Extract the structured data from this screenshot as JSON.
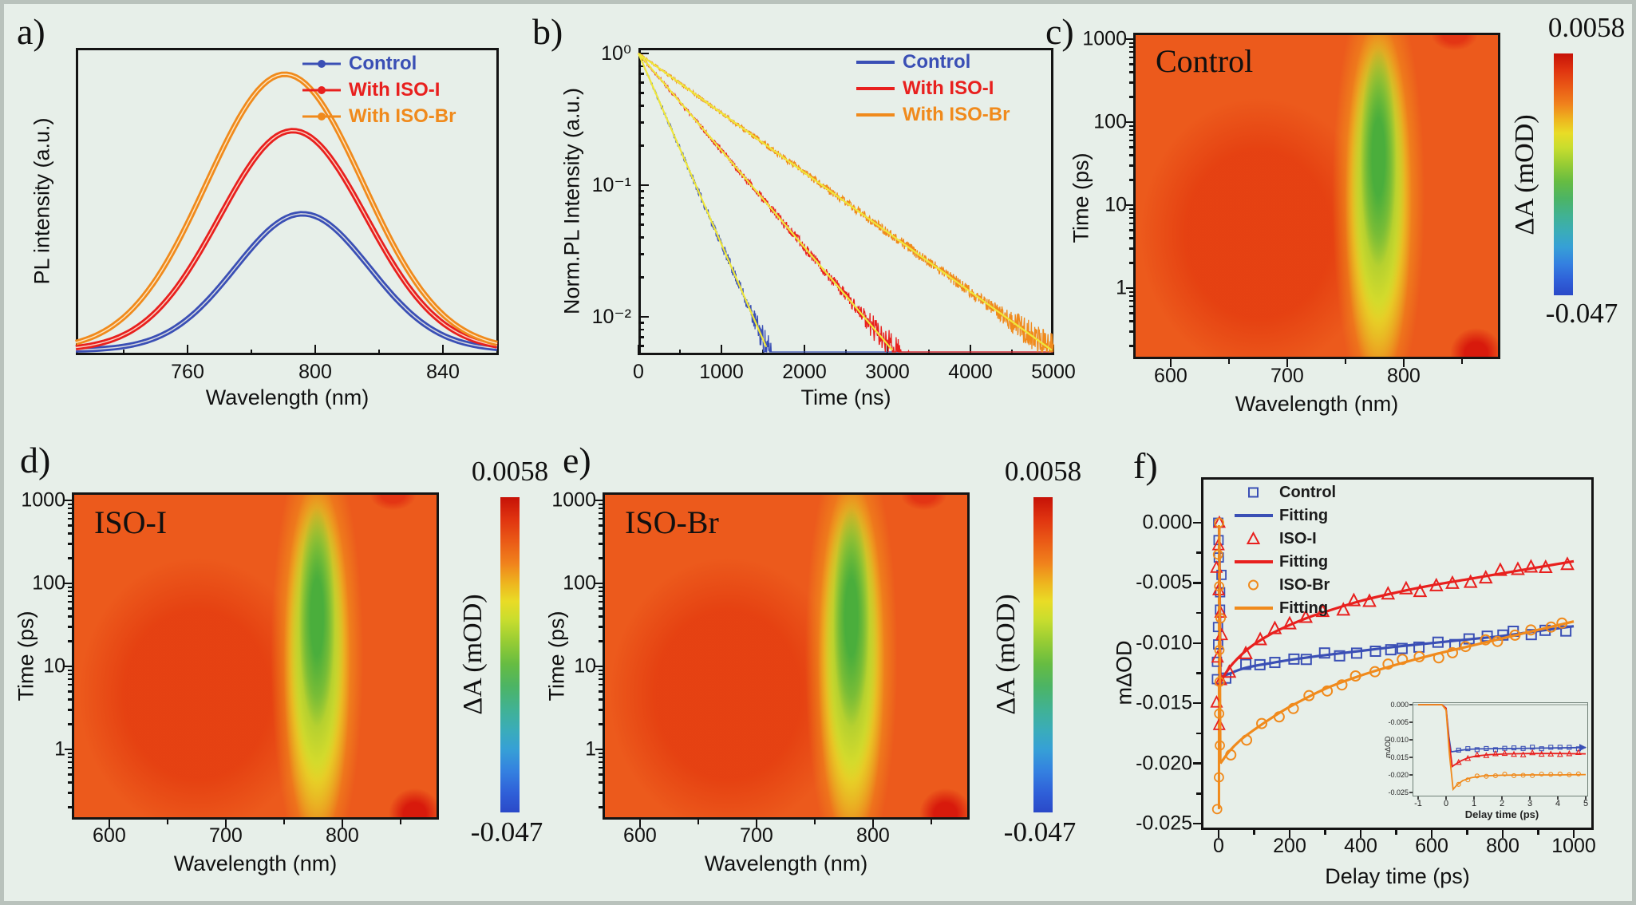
{
  "figure": {
    "background_color": "#e7efe9",
    "frame_color": "#b9c2bc",
    "accent_blue": "#3a4fb5",
    "accent_red": "#e8201e",
    "accent_orange": "#f08a1c",
    "fit_yellow": "#efe73a"
  },
  "chart_data": [
    {
      "panel_label": "a)",
      "type": "line",
      "xlabel": "Wavelength (nm)",
      "ylabel": "PL intensity (a.u.)",
      "xticks": [
        760,
        800,
        840
      ],
      "x_range_nm": [
        725,
        857
      ],
      "series": [
        {
          "name": "Control",
          "color": "#3a4fb5",
          "peak_nm": 796,
          "sigma_nm": 21,
          "peak_height_frac": 0.46
        },
        {
          "name": "With ISO-I",
          "color": "#e8201e",
          "peak_nm": 793,
          "sigma_nm": 23,
          "peak_height_frac": 0.74
        },
        {
          "name": "With ISO-Br",
          "color": "#f08a1c",
          "peak_nm": 790.5,
          "sigma_nm": 24.5,
          "peak_height_frac": 0.93
        }
      ]
    },
    {
      "panel_label": "b)",
      "type": "line-log",
      "xlabel": "Time (ns)",
      "ylabel": "Norm.PL Intensity (a.u.)",
      "xticks": [
        0,
        1000,
        2000,
        3000,
        4000,
        5000
      ],
      "ytick_labels": [
        "10⁰",
        "10⁻¹",
        "10⁻²"
      ],
      "y_range_decades": [
        0,
        -2.3
      ],
      "fit_color": "#efe73a",
      "series": [
        {
          "name": "Control",
          "color": "#3a4fb5",
          "lifetime_ns": 300
        },
        {
          "name": "With ISO-I",
          "color": "#e8201e",
          "lifetime_ns": 590
        },
        {
          "name": "With ISO-Br",
          "color": "#f08a1c",
          "lifetime_ns": 960
        }
      ]
    },
    {
      "panel_label": "c)",
      "type": "heatmap",
      "title": "Control",
      "xlabel": "Wavelength (nm)",
      "ylabel": "Time (ps)",
      "xticks": [
        600,
        700,
        800
      ],
      "yticks": [
        1,
        10,
        100,
        1000
      ],
      "colorbar": {
        "max_label": "0.0058",
        "min_label": "-0.047",
        "label": "ΔA (mOD)"
      },
      "features": {
        "base_color": "#ec5a1c",
        "band_x_pct": 67,
        "band_core_color": "#4aae3c",
        "band_halo_color": "#e4e02a",
        "bleach_band_center_nm": 780,
        "hot_corner": "bottom-right"
      }
    },
    {
      "panel_label": "d)",
      "type": "heatmap",
      "title": "ISO-I",
      "xlabel": "Wavelength (nm)",
      "ylabel": "Time (ps)",
      "xticks": [
        600,
        700,
        800
      ],
      "yticks": [
        1,
        10,
        100,
        1000
      ],
      "colorbar": {
        "max_label": "0.0058",
        "min_label": "-0.047",
        "label": "ΔA (mOD)"
      },
      "features": {
        "base_color": "#ec5a1c",
        "band_x_pct": 67,
        "band_core_color": "#4aae3c",
        "band_halo_color": "#e4e02a",
        "bleach_band_center_nm": 780,
        "hot_corner": "bottom-right"
      }
    },
    {
      "panel_label": "e)",
      "type": "heatmap",
      "title": "ISO-Br",
      "xlabel": "Wavelength (nm)",
      "ylabel": "Time (ps)",
      "xticks": [
        600,
        700,
        800
      ],
      "yticks": [
        1,
        10,
        100,
        1000
      ],
      "colorbar": {
        "max_label": "0.0058",
        "min_label": "-0.047",
        "label": "ΔA (mOD)"
      },
      "features": {
        "base_color": "#ec5a1c",
        "band_x_pct": 68,
        "band_core_color": "#4aae3c",
        "band_halo_color": "#e4e02a",
        "bleach_band_center_nm": 780,
        "hot_corner": "bottom-right"
      }
    },
    {
      "panel_label": "f)",
      "type": "scatter+fit",
      "xlabel": "Delay time (ps)",
      "ylabel": "mΔOD",
      "xticks": [
        0,
        200,
        400,
        600,
        800,
        1000
      ],
      "yticks": [
        "0.000",
        "-0.005",
        "-0.010",
        "-0.015",
        "-0.020",
        "-0.025"
      ],
      "legend": [
        {
          "label": "Control",
          "marker": "square",
          "color": "#3a4fb5"
        },
        {
          "label": "Fitting",
          "marker": "line",
          "color": "#3a4fb5"
        },
        {
          "label": "ISO-I",
          "marker": "triangle",
          "color": "#e8201e"
        },
        {
          "label": "Fitting",
          "marker": "line",
          "color": "#e8201e"
        },
        {
          "label": "ISO-Br",
          "marker": "circle",
          "color": "#f08a1c"
        },
        {
          "label": "Fitting",
          "marker": "line",
          "color": "#f08a1c"
        }
      ],
      "spike": {
        "t": 0,
        "from_mdod": 0,
        "to_mdod": -0.0238,
        "color": "#f08a1c"
      },
      "series": [
        {
          "name": "Control",
          "marker": "square",
          "color": "#3a4fb5",
          "fit": [
            [
              5,
              -0.0128
            ],
            [
              30,
              -0.01255
            ],
            [
              60,
              -0.0122
            ],
            [
              100,
              -0.0119
            ],
            [
              150,
              -0.01165
            ],
            [
              200,
              -0.0114
            ],
            [
              300,
              -0.011
            ],
            [
              400,
              -0.01065
            ],
            [
              500,
              -0.0103
            ],
            [
              600,
              -0.01
            ],
            [
              700,
              -0.0097
            ],
            [
              800,
              -0.0094
            ],
            [
              900,
              -0.009
            ],
            [
              1000,
              -0.0086
            ]
          ],
          "zero_cluster_min": -0.013
        },
        {
          "name": "ISO-I",
          "marker": "triangle",
          "color": "#e8201e",
          "fit": [
            [
              5,
              -0.0133
            ],
            [
              20,
              -0.0125
            ],
            [
              40,
              -0.0117
            ],
            [
              70,
              -0.0108
            ],
            [
              100,
              -0.0101
            ],
            [
              150,
              -0.0092
            ],
            [
              200,
              -0.0085
            ],
            [
              250,
              -0.0079
            ],
            [
              300,
              -0.0074
            ],
            [
              400,
              -0.0065
            ],
            [
              500,
              -0.0058
            ],
            [
              600,
              -0.0052
            ],
            [
              700,
              -0.0047
            ],
            [
              800,
              -0.0042
            ],
            [
              900,
              -0.0037
            ],
            [
              1000,
              -0.0032
            ]
          ],
          "zero_cluster_min": -0.0168
        },
        {
          "name": "ISO-Br",
          "marker": "circle",
          "color": "#f08a1c",
          "fit": [
            [
              5,
              -0.02
            ],
            [
              30,
              -0.019
            ],
            [
              60,
              -0.0181
            ],
            [
              100,
              -0.0172
            ],
            [
              150,
              -0.0162
            ],
            [
              200,
              -0.0153
            ],
            [
              300,
              -0.0138
            ],
            [
              400,
              -0.0127
            ],
            [
              500,
              -0.0118
            ],
            [
              600,
              -0.011
            ],
            [
              700,
              -0.0103
            ],
            [
              800,
              -0.0096
            ],
            [
              900,
              -0.0089
            ],
            [
              1000,
              -0.0082
            ]
          ],
          "zero_cluster_min": -0.0238
        }
      ],
      "inset": {
        "xlabel": "Delay time (ps)",
        "ylabel": "mΔOD",
        "xticks": [
          -1,
          0,
          1,
          2,
          3,
          4,
          5
        ],
        "ytick_labels": [
          "0.000",
          "-0.005",
          "-0.010",
          "-0.015",
          "-0.020",
          "-0.025"
        ],
        "series": [
          {
            "name": "Control",
            "color": "#3a4fb5",
            "marker": "square",
            "arrow_end": true,
            "points": [
              [
                -1,
                0
              ],
              [
                -0.15,
                0
              ],
              [
                0,
                -0.001
              ],
              [
                0.1,
                -0.009
              ],
              [
                0.18,
                -0.0134
              ],
              [
                0.3,
                -0.0133
              ],
              [
                0.5,
                -0.013
              ],
              [
                0.8,
                -0.0127
              ],
              [
                1.2,
                -0.0126
              ],
              [
                2,
                -0.0125
              ],
              [
                3,
                -0.0124
              ],
              [
                4,
                -0.0123
              ],
              [
                5,
                -0.0122
              ]
            ]
          },
          {
            "name": "ISO-I",
            "color": "#e8201e",
            "marker": "triangle",
            "arrow_end": false,
            "points": [
              [
                -1,
                0
              ],
              [
                -0.15,
                0
              ],
              [
                0,
                -0.001
              ],
              [
                0.1,
                -0.01
              ],
              [
                0.22,
                -0.0176
              ],
              [
                0.35,
                -0.0169
              ],
              [
                0.55,
                -0.0159
              ],
              [
                0.8,
                -0.0151
              ],
              [
                1.1,
                -0.0146
              ],
              [
                1.6,
                -0.0142
              ],
              [
                2.2,
                -0.014
              ],
              [
                3,
                -0.0139
              ],
              [
                4,
                -0.0139
              ],
              [
                5,
                -0.014
              ]
            ]
          },
          {
            "name": "ISO-Br",
            "color": "#f08a1c",
            "marker": "circle",
            "arrow_end": false,
            "points": [
              [
                -1,
                0
              ],
              [
                -0.15,
                0
              ],
              [
                0,
                -0.0015
              ],
              [
                0.12,
                -0.014
              ],
              [
                0.25,
                -0.0241
              ],
              [
                0.4,
                -0.0228
              ],
              [
                0.6,
                -0.0216
              ],
              [
                0.9,
                -0.0208
              ],
              [
                1.3,
                -0.0203
              ],
              [
                2,
                -0.0201
              ],
              [
                3,
                -0.02
              ],
              [
                4,
                -0.02
              ],
              [
                5,
                -0.0199
              ]
            ]
          }
        ]
      }
    }
  ]
}
